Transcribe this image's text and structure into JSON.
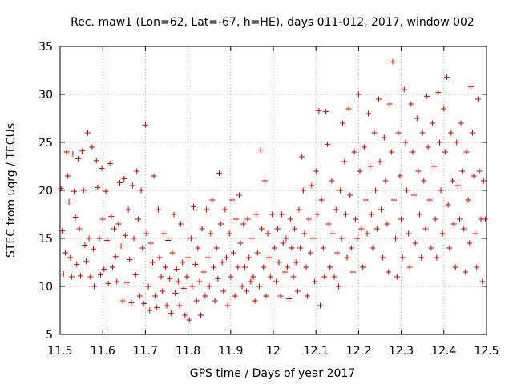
{
  "chart_data": {
    "type": "scatter",
    "title": "Rec. maw1 (Lon=62, Lat=-67, h=HE), days 011-012, 2017, window 002",
    "xlabel": "GPS time / Days of year 2017",
    "ylabel": "STEC from uqrg / TECUs",
    "xlim": [
      11.5,
      12.5
    ],
    "ylim": [
      5,
      35
    ],
    "xticks": [
      "11.5",
      "11.6",
      "11.7",
      "11.8",
      "11.9",
      "12",
      "12.1",
      "12.2",
      "12.3",
      "12.4",
      "12.5"
    ],
    "yticks": [
      "5",
      "10",
      "15",
      "20",
      "25",
      "30",
      "35"
    ],
    "grid": true,
    "marker": "+",
    "color": "#cc0000",
    "points": [
      [
        11.502,
        20.2
      ],
      [
        11.505,
        15.8
      ],
      [
        11.508,
        11.3
      ],
      [
        11.512,
        13.5
      ],
      [
        11.515,
        24.0
      ],
      [
        11.518,
        21.5
      ],
      [
        11.521,
        18.8
      ],
      [
        11.524,
        13.0
      ],
      [
        11.527,
        11.0
      ],
      [
        11.53,
        23.8
      ],
      [
        11.533,
        19.9
      ],
      [
        11.536,
        17.2
      ],
      [
        11.539,
        12.3
      ],
      [
        11.542,
        23.3
      ],
      [
        11.545,
        16.0
      ],
      [
        11.548,
        11.1
      ],
      [
        11.552,
        24.1
      ],
      [
        11.555,
        20.0
      ],
      [
        11.558,
        14.3
      ],
      [
        11.561,
        12.6
      ],
      [
        11.565,
        26.0
      ],
      [
        11.568,
        15.0
      ],
      [
        11.571,
        11.0
      ],
      [
        11.575,
        24.5
      ],
      [
        11.578,
        13.9
      ],
      [
        11.58,
        10.0
      ],
      [
        11.585,
        23.1
      ],
      [
        11.588,
        20.3
      ],
      [
        11.592,
        15.0
      ],
      [
        11.595,
        11.2
      ],
      [
        11.598,
        22.3
      ],
      [
        11.6,
        17.0
      ],
      [
        11.603,
        11.8
      ],
      [
        11.607,
        19.9
      ],
      [
        11.61,
        14.8
      ],
      [
        11.613,
        10.3
      ],
      [
        11.617,
        22.8
      ],
      [
        11.62,
        17.3
      ],
      [
        11.623,
        12.0
      ],
      [
        11.627,
        16.0
      ],
      [
        11.63,
        13.1
      ],
      [
        11.633,
        10.5
      ],
      [
        11.637,
        16.5
      ],
      [
        11.64,
        20.8
      ],
      [
        11.643,
        14.2
      ],
      [
        11.647,
        8.5
      ],
      [
        11.65,
        21.2
      ],
      [
        11.653,
        15.3
      ],
      [
        11.657,
        10.4
      ],
      [
        11.66,
        18.0
      ],
      [
        11.663,
        12.8
      ],
      [
        11.667,
        8.3
      ],
      [
        11.67,
        20.5
      ],
      [
        11.673,
        15.0
      ],
      [
        11.677,
        11.2
      ],
      [
        11.68,
        22.0
      ],
      [
        11.683,
        17.0
      ],
      [
        11.687,
        9.0
      ],
      [
        11.69,
        20.0
      ],
      [
        11.693,
        14.0
      ],
      [
        11.697,
        8.2
      ],
      [
        11.7,
        26.8
      ],
      [
        11.703,
        15.5
      ],
      [
        11.707,
        10.0
      ],
      [
        11.71,
        7.5
      ],
      [
        11.713,
        14.5
      ],
      [
        11.717,
        12.5
      ],
      [
        11.72,
        21.5
      ],
      [
        11.723,
        9.0
      ],
      [
        11.727,
        7.8
      ],
      [
        11.73,
        18.0
      ],
      [
        11.733,
        13.0
      ],
      [
        11.737,
        11.0
      ],
      [
        11.74,
        9.5
      ],
      [
        11.743,
        15.5
      ],
      [
        11.747,
        12.0
      ],
      [
        11.75,
        8.0
      ],
      [
        11.753,
        14.8
      ],
      [
        11.757,
        10.8
      ],
      [
        11.76,
        7.2
      ],
      [
        11.763,
        13.5
      ],
      [
        11.767,
        17.5
      ],
      [
        11.77,
        9.3
      ],
      [
        11.773,
        11.8
      ],
      [
        11.777,
        10.5
      ],
      [
        11.78,
        8.0
      ],
      [
        11.783,
        16.5
      ],
      [
        11.787,
        12.5
      ],
      [
        11.79,
        9.8
      ],
      [
        11.793,
        7.0
      ],
      [
        11.797,
        11.0
      ],
      [
        11.8,
        13.0
      ],
      [
        11.803,
        6.5
      ],
      [
        11.807,
        15.0
      ],
      [
        11.81,
        10.0
      ],
      [
        11.813,
        18.3
      ],
      [
        11.817,
        12.3
      ],
      [
        11.82,
        8.5
      ],
      [
        11.823,
        14.0
      ],
      [
        11.827,
        10.5
      ],
      [
        11.83,
        7.0
      ],
      [
        11.833,
        16.0
      ],
      [
        11.837,
        11.5
      ],
      [
        11.84,
        9.0
      ],
      [
        11.843,
        18.0
      ],
      [
        11.847,
        13.0
      ],
      [
        11.85,
        10.0
      ],
      [
        11.853,
        15.5
      ],
      [
        11.857,
        19.0
      ],
      [
        11.86,
        12.0
      ],
      [
        11.863,
        8.5
      ],
      [
        11.867,
        14.0
      ],
      [
        11.87,
        10.8
      ],
      [
        11.873,
        21.8
      ],
      [
        11.877,
        16.5
      ],
      [
        11.88,
        12.5
      ],
      [
        11.883,
        9.5
      ],
      [
        11.887,
        18.0
      ],
      [
        11.89,
        13.0
      ],
      [
        11.893,
        8.0
      ],
      [
        11.897,
        15.5
      ],
      [
        11.9,
        11.0
      ],
      [
        11.903,
        19.0
      ],
      [
        11.907,
        13.5
      ],
      [
        11.91,
        9.0
      ],
      [
        11.913,
        17.0
      ],
      [
        11.917,
        12.0
      ],
      [
        11.92,
        19.5
      ],
      [
        11.923,
        14.5
      ],
      [
        11.927,
        10.0
      ],
      [
        11.93,
        16.5
      ],
      [
        11.933,
        12.0
      ],
      [
        11.937,
        9.5
      ],
      [
        11.94,
        17.0
      ],
      [
        11.943,
        13.0
      ],
      [
        11.947,
        10.5
      ],
      [
        11.95,
        15.0
      ],
      [
        11.953,
        11.0
      ],
      [
        11.957,
        8.5
      ],
      [
        11.96,
        17.5
      ],
      [
        11.963,
        13.5
      ],
      [
        11.967,
        10.0
      ],
      [
        11.97,
        24.2
      ],
      [
        11.973,
        16.0
      ],
      [
        11.977,
        12.0
      ],
      [
        11.98,
        21.0
      ],
      [
        11.983,
        9.0
      ],
      [
        11.987,
        15.5
      ],
      [
        11.99,
        13.0
      ],
      [
        11.993,
        11.0
      ],
      [
        11.997,
        17.5
      ],
      [
        12.003,
        14.0
      ],
      [
        12.007,
        10.5
      ],
      [
        12.01,
        16.0
      ],
      [
        12.013,
        12.5
      ],
      [
        12.017,
        9.0
      ],
      [
        12.02,
        17.5
      ],
      [
        12.023,
        14.5
      ],
      [
        12.027,
        11.5
      ],
      [
        12.03,
        15.0
      ],
      [
        12.033,
        12.0
      ],
      [
        12.037,
        8.7
      ],
      [
        12.04,
        17.0
      ],
      [
        12.043,
        14.0
      ],
      [
        12.047,
        11.0
      ],
      [
        12.05,
        16.0
      ],
      [
        12.053,
        12.5
      ],
      [
        12.057,
        9.5
      ],
      [
        12.06,
        18.0
      ],
      [
        12.063,
        14.0
      ],
      [
        12.067,
        23.5
      ],
      [
        12.07,
        20.0
      ],
      [
        12.073,
        15.5
      ],
      [
        12.077,
        12.0
      ],
      [
        12.08,
        9.0
      ],
      [
        12.083,
        17.0
      ],
      [
        12.087,
        13.5
      ],
      [
        12.09,
        20.5
      ],
      [
        12.093,
        15.0
      ],
      [
        12.097,
        10.5
      ],
      [
        12.1,
        22.0
      ],
      [
        12.103,
        17.5
      ],
      [
        12.107,
        28.3
      ],
      [
        12.11,
        8.0
      ],
      [
        12.113,
        19.0
      ],
      [
        12.117,
        14.0
      ],
      [
        12.12,
        11.0
      ],
      [
        12.123,
        28.2
      ],
      [
        12.127,
        24.8
      ],
      [
        12.13,
        16.5
      ],
      [
        12.133,
        12.0
      ],
      [
        12.137,
        21.0
      ],
      [
        12.14,
        15.5
      ],
      [
        12.143,
        11.0
      ],
      [
        12.147,
        18.0
      ],
      [
        12.15,
        13.5
      ],
      [
        12.153,
        10.0
      ],
      [
        12.157,
        20.0
      ],
      [
        12.16,
        15.0
      ],
      [
        12.163,
        27.0
      ],
      [
        12.167,
        23.0
      ],
      [
        12.17,
        17.5
      ],
      [
        12.173,
        13.0
      ],
      [
        12.177,
        28.5
      ],
      [
        12.18,
        19.5
      ],
      [
        12.183,
        14.0
      ],
      [
        12.187,
        11.5
      ],
      [
        12.19,
        24.0
      ],
      [
        12.193,
        17.0
      ],
      [
        12.197,
        15.0
      ],
      [
        12.2,
        30.0
      ],
      [
        12.203,
        22.0
      ],
      [
        12.207,
        16.0
      ],
      [
        12.21,
        12.0
      ],
      [
        12.213,
        24.5
      ],
      [
        12.217,
        19.0
      ],
      [
        12.22,
        15.5
      ],
      [
        12.223,
        28.0
      ],
      [
        12.227,
        22.5
      ],
      [
        12.23,
        17.5
      ],
      [
        12.233,
        14.0
      ],
      [
        12.237,
        26.0
      ],
      [
        12.24,
        20.0
      ],
      [
        12.243,
        16.0
      ],
      [
        12.247,
        29.5
      ],
      [
        12.25,
        23.0
      ],
      [
        12.253,
        18.0
      ],
      [
        12.257,
        13.0
      ],
      [
        12.26,
        25.5
      ],
      [
        12.263,
        21.0
      ],
      [
        12.267,
        16.5
      ],
      [
        12.27,
        11.5
      ],
      [
        12.273,
        29.0
      ],
      [
        12.277,
        24.0
      ],
      [
        12.28,
        33.4
      ],
      [
        12.283,
        19.0
      ],
      [
        12.287,
        15.0
      ],
      [
        12.29,
        11.0
      ],
      [
        12.293,
        26.0
      ],
      [
        12.297,
        21.5
      ],
      [
        12.3,
        17.0
      ],
      [
        12.303,
        13.0
      ],
      [
        12.307,
        30.5
      ],
      [
        12.31,
        25.0
      ],
      [
        12.313,
        20.0
      ],
      [
        12.317,
        15.5
      ],
      [
        12.32,
        12.0
      ],
      [
        12.323,
        29.0
      ],
      [
        12.327,
        24.0
      ],
      [
        12.33,
        19.5
      ],
      [
        12.333,
        14.5
      ],
      [
        12.337,
        27.5
      ],
      [
        12.34,
        22.0
      ],
      [
        12.343,
        17.5
      ],
      [
        12.347,
        13.0
      ],
      [
        12.35,
        26.0
      ],
      [
        12.353,
        21.0
      ],
      [
        12.357,
        16.0
      ],
      [
        12.36,
        29.8
      ],
      [
        12.363,
        24.5
      ],
      [
        12.367,
        19.0
      ],
      [
        12.37,
        14.0
      ],
      [
        12.373,
        27.0
      ],
      [
        12.377,
        22.5
      ],
      [
        12.38,
        17.0
      ],
      [
        12.383,
        13.0
      ],
      [
        12.387,
        30.2
      ],
      [
        12.39,
        25.0
      ],
      [
        12.393,
        20.0
      ],
      [
        12.397,
        15.5
      ],
      [
        12.4,
        28.5
      ],
      [
        12.403,
        24.0
      ],
      [
        12.407,
        31.8
      ],
      [
        12.41,
        18.5
      ],
      [
        12.413,
        14.0
      ],
      [
        12.417,
        26.0
      ],
      [
        12.42,
        21.0
      ],
      [
        12.423,
        16.5
      ],
      [
        12.427,
        12.0
      ],
      [
        12.43,
        25.0
      ],
      [
        12.433,
        20.5
      ],
      [
        12.437,
        17.0
      ],
      [
        12.44,
        27.0
      ],
      [
        12.443,
        22.0
      ],
      [
        12.447,
        16.0
      ],
      [
        12.45,
        11.5
      ],
      [
        12.453,
        24.0
      ],
      [
        12.457,
        19.0
      ],
      [
        12.46,
        14.5
      ],
      [
        12.463,
        30.8
      ],
      [
        12.467,
        26.0
      ],
      [
        12.47,
        21.5
      ],
      [
        12.473,
        15.5
      ],
      [
        12.477,
        12.0
      ],
      [
        12.48,
        29.5
      ],
      [
        12.483,
        22.0
      ],
      [
        12.487,
        17.0
      ],
      [
        12.49,
        10.5
      ],
      [
        12.493,
        21.0
      ],
      [
        12.497,
        17.0
      ]
    ]
  }
}
